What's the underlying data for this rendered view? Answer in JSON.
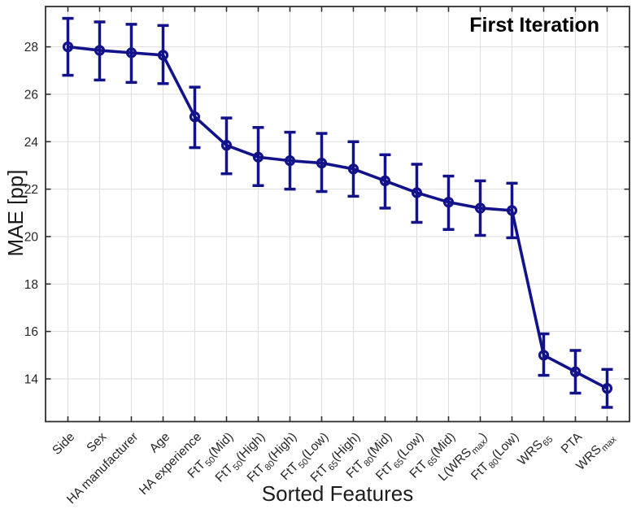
{
  "figure": {
    "background": "#ffffff"
  },
  "chart_data": {
    "type": "line",
    "subtype": "errorbar",
    "title": "First Iteration",
    "xlabel": "Sorted Features",
    "ylabel": "MAE [pp]",
    "ylim": [
      12.2,
      29.7
    ],
    "yticks": [
      14,
      16,
      18,
      20,
      22,
      24,
      26,
      28
    ],
    "grid": true,
    "legend_position": "none",
    "line_color": "#12128a",
    "marker": "open-circle",
    "categories": [
      "Side",
      "Sex",
      "HA manufacturer",
      "Age",
      "HA experience",
      "FtT_{50}(Mid)",
      "FtT_{50}(High)",
      "FtT_{80}(High)",
      "FtT_{50}(Low)",
      "FtT_{65}(High)",
      "FtT_{80}(Mid)",
      "FtT_{65}(Low)",
      "FtT_{65}(Mid)",
      "L(WRS_{max})",
      "FtT_{80}(Low)",
      "WRS_{65}",
      "PTA",
      "WRS_{max}"
    ],
    "values": [
      28.0,
      27.85,
      27.75,
      27.65,
      25.05,
      23.85,
      23.35,
      23.2,
      23.1,
      22.85,
      22.35,
      21.85,
      21.45,
      21.2,
      21.1,
      15.0,
      14.3,
      13.6
    ],
    "err_up": [
      1.2,
      1.2,
      1.2,
      1.25,
      1.25,
      1.15,
      1.25,
      1.2,
      1.25,
      1.15,
      1.1,
      1.2,
      1.1,
      1.15,
      1.15,
      0.9,
      0.9,
      0.8
    ],
    "err_down": [
      1.2,
      1.25,
      1.25,
      1.2,
      1.3,
      1.2,
      1.2,
      1.2,
      1.2,
      1.15,
      1.15,
      1.25,
      1.15,
      1.15,
      1.15,
      0.85,
      0.9,
      0.8
    ]
  }
}
